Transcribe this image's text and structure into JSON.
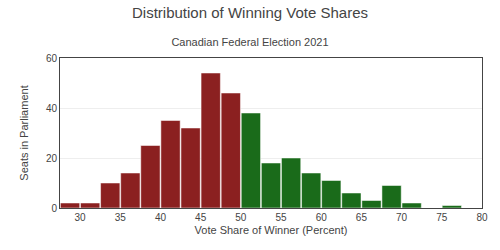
{
  "chart_data": {
    "type": "bar",
    "title": "Distribution of Winning Vote Shares",
    "subtitle": "Canadian Federal Election 2021",
    "xlabel": "Vote Share of Winner (Percent)",
    "ylabel": "Seats in Parliament",
    "x": [
      28.75,
      31.25,
      33.75,
      36.25,
      38.75,
      41.25,
      43.75,
      46.25,
      48.75,
      51.25,
      53.75,
      56.25,
      58.75,
      61.25,
      63.75,
      66.25,
      68.75,
      71.25,
      73.75,
      76.25,
      78.75
    ],
    "values": [
      2,
      2,
      10,
      14,
      25,
      35,
      32,
      54,
      46,
      38,
      18,
      20,
      14,
      11,
      6,
      3,
      9,
      2,
      0,
      1,
      0
    ],
    "colors": [
      "#8B2020",
      "#8B2020",
      "#8B2020",
      "#8B2020",
      "#8B2020",
      "#8B2020",
      "#8B2020",
      "#8B2020",
      "#8B2020",
      "#1A6B1A",
      "#1A6B1A",
      "#1A6B1A",
      "#1A6B1A",
      "#1A6B1A",
      "#1A6B1A",
      "#1A6B1A",
      "#1A6B1A",
      "#1A6B1A",
      "#1A6B1A",
      "#1A6B1A",
      "#1A6B1A"
    ],
    "xlim": [
      27.5,
      80
    ],
    "xticks": [
      30,
      35,
      40,
      45,
      50,
      55,
      60,
      65,
      70,
      75,
      80
    ],
    "ylim": [
      0,
      60
    ],
    "yticks": [
      0,
      20,
      40,
      60
    ],
    "grid": "y"
  }
}
